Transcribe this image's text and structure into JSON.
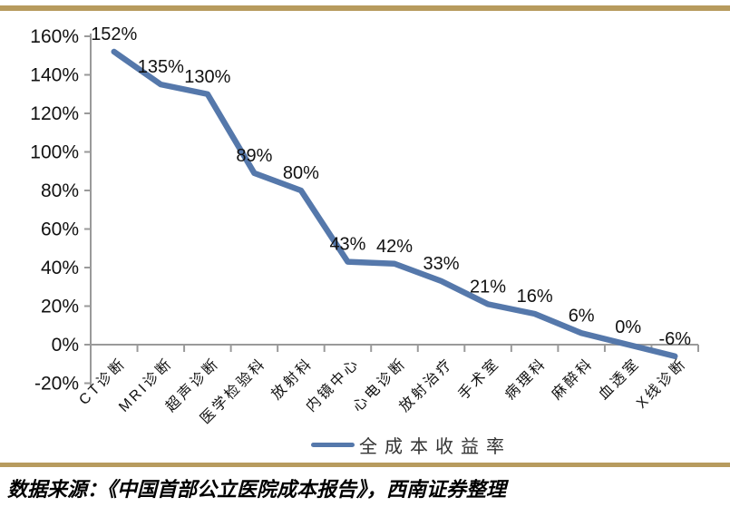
{
  "page": {
    "source_note": "数据来源：《中国首部公立医院成本报告》，西南证券整理"
  },
  "colors": {
    "series_line": "#5578AB",
    "axis": "#9a9a9a",
    "accent_bar": "#B79B5E",
    "data_label_text": "#111111",
    "legend_text": "#333333"
  },
  "chart_data": {
    "type": "line",
    "title": "",
    "xlabel": "",
    "ylabel": "",
    "categories": [
      "CT诊断",
      "MRI诊断",
      "超声诊断",
      "医学检验科",
      "放射科",
      "内镜中心",
      "心电诊断",
      "放射治疗",
      "手术室",
      "病理科",
      "麻醉科",
      "血透室",
      "X线诊断"
    ],
    "series": [
      {
        "name": "全成本收益率",
        "values": [
          152,
          135,
          130,
          89,
          80,
          43,
          42,
          33,
          21,
          16,
          6,
          0,
          -6
        ],
        "data_labels": [
          "152%",
          "135%",
          "130%",
          "89%",
          "80%",
          "43%",
          "42%",
          "33%",
          "21%",
          "16%",
          "6%",
          "0%",
          "-6%"
        ]
      }
    ],
    "ylim": [
      -20,
      160
    ],
    "ytick_step": 20,
    "ytick_labels": [
      "160%",
      "140%",
      "120%",
      "100%",
      "80%",
      "60%",
      "40%",
      "20%",
      "0%",
      "-20%"
    ],
    "grid": false,
    "legend_position": "bottom",
    "category_axis_crosses_at": 0
  }
}
